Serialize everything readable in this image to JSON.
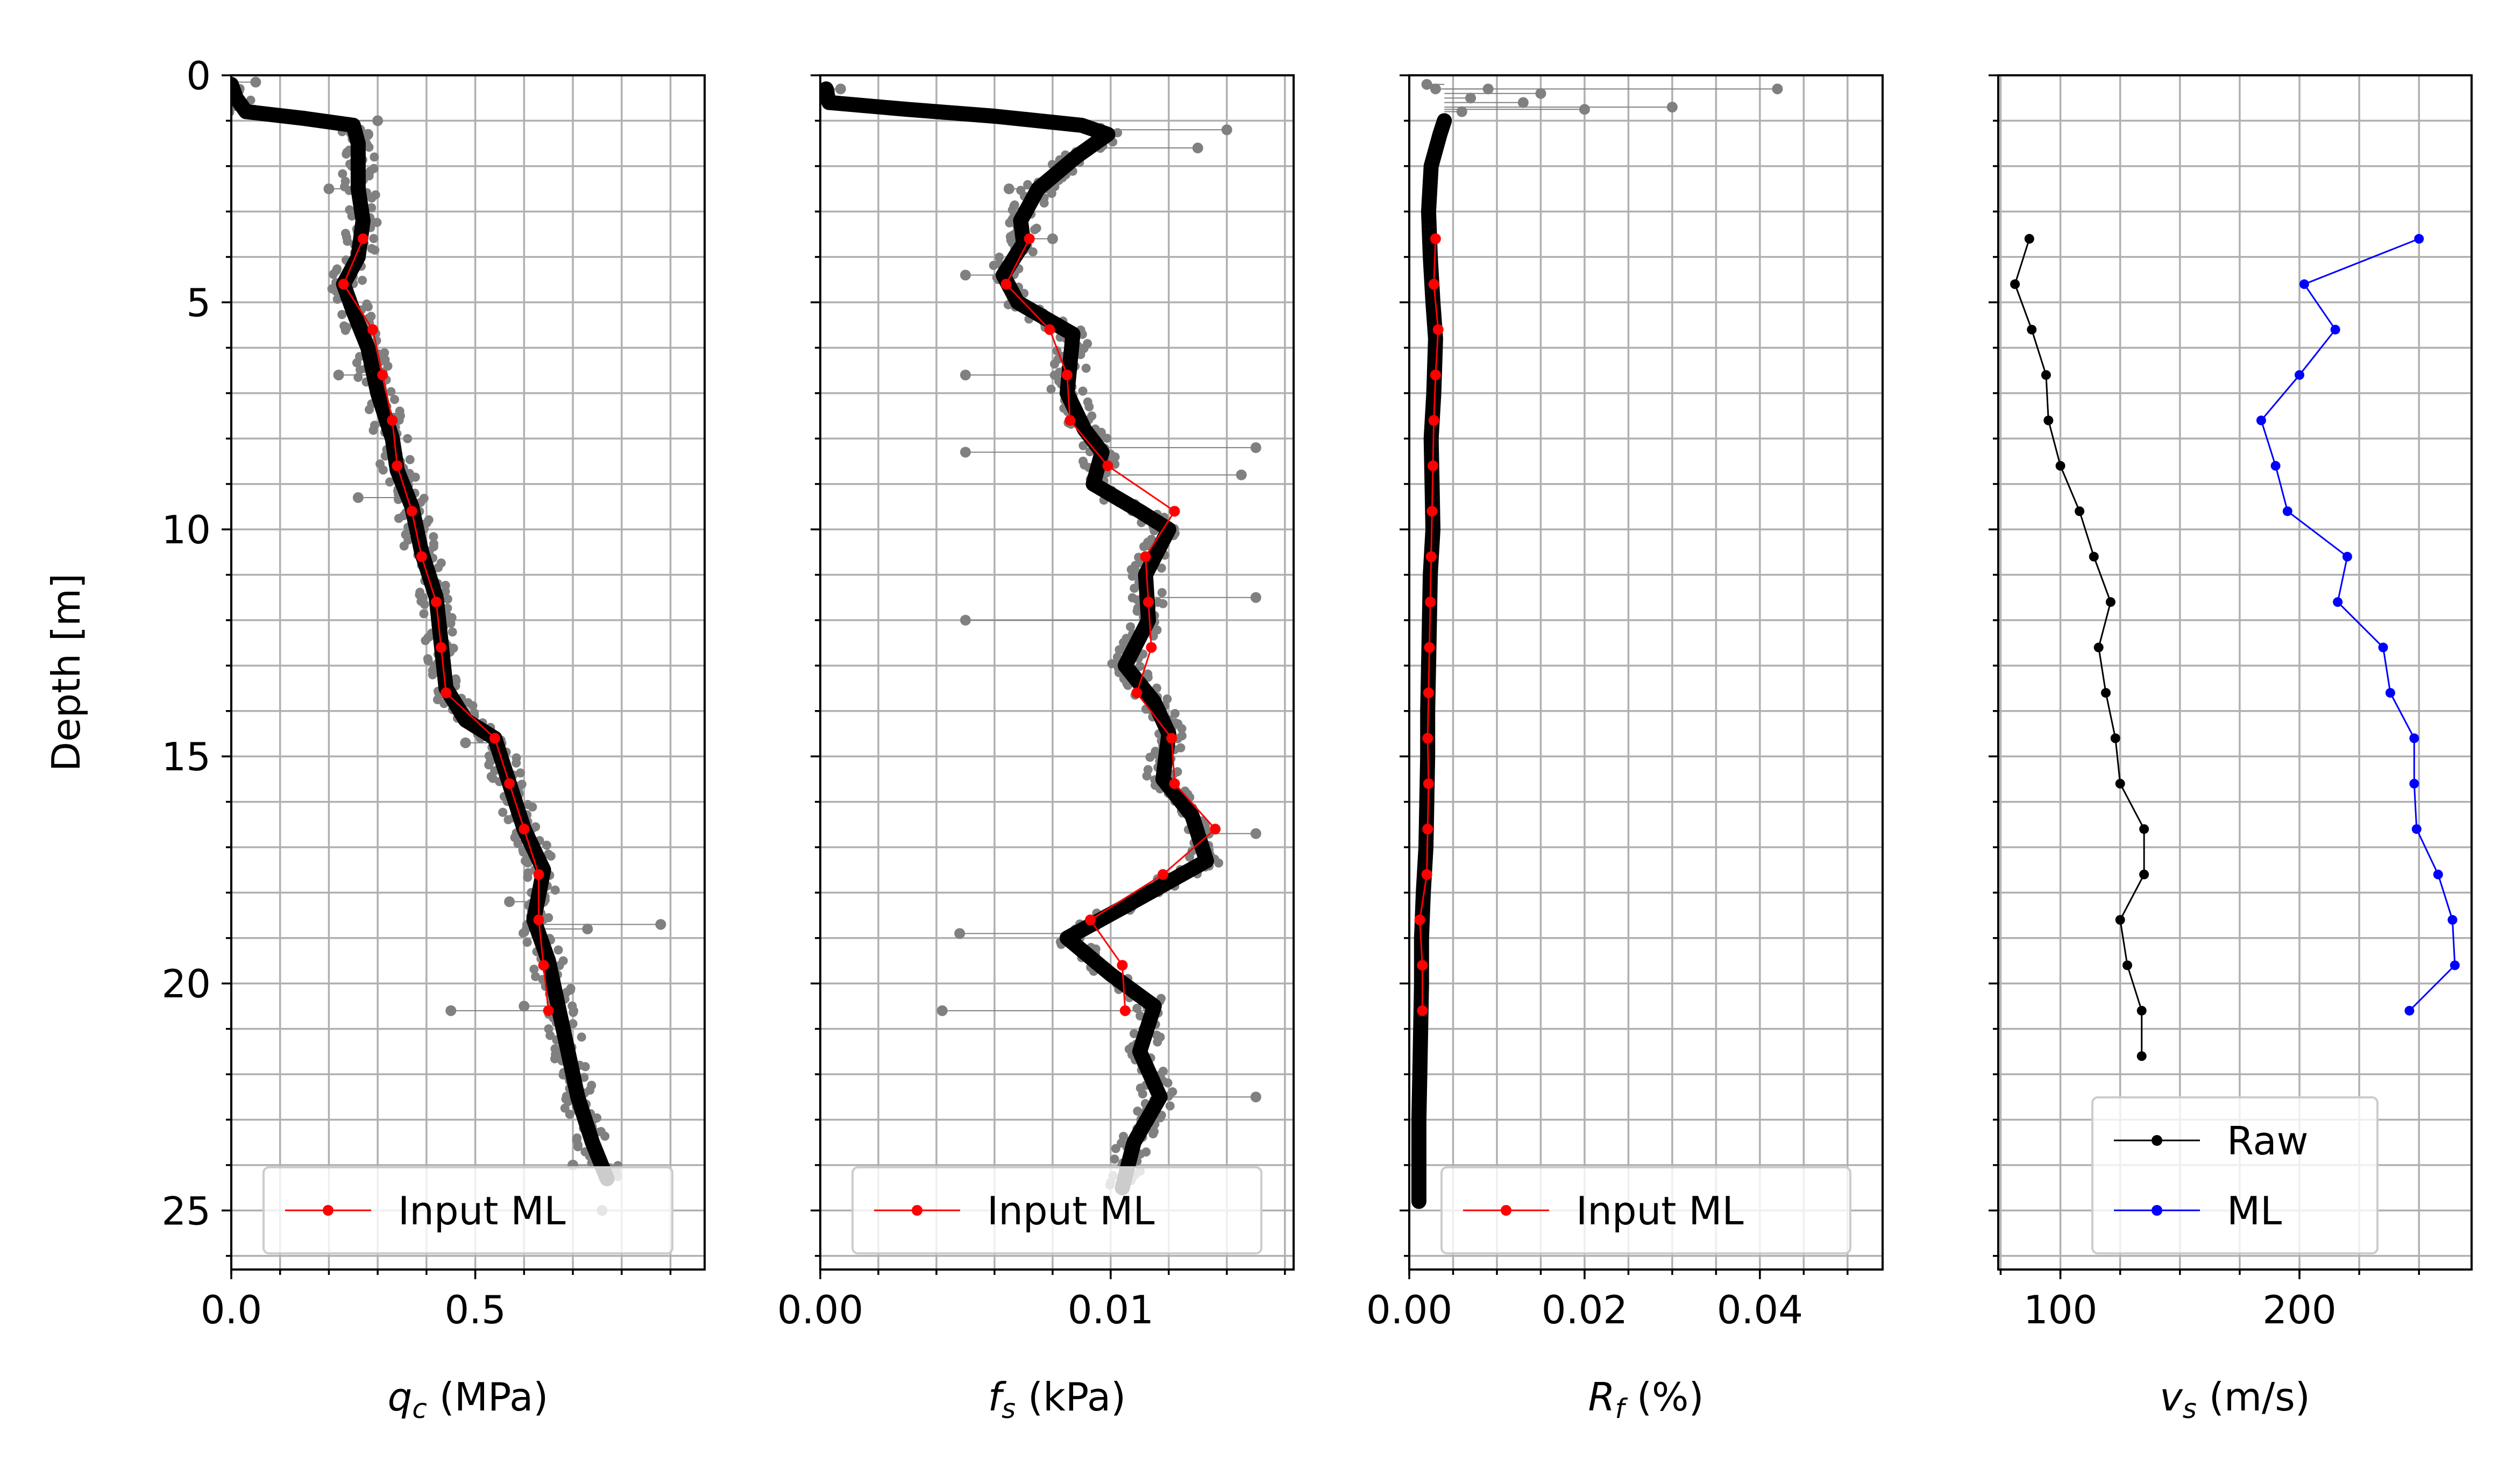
{
  "figure": {
    "ylabel": "Depth [m]",
    "colors": {
      "grid": "#b0b0b0",
      "raw_points": "#808080",
      "smoothed_line": "#000000",
      "input_ml": "#ff0000",
      "vs_raw": "#000000",
      "vs_ml": "#0000ff",
      "axes": "#000000",
      "legend_border": "#cccccc"
    }
  },
  "chart_data": [
    {
      "type": "scatter",
      "panel": "qc",
      "xlabel_main": "q",
      "xlabel_sub": "c",
      "xlabel_unit": " (MPa)",
      "xlim": [
        0,
        0.97
      ],
      "ylim": [
        26.3,
        0
      ],
      "xticks": [
        0,
        0.5
      ],
      "xtick_labels": [
        "0.0",
        "0.5"
      ],
      "xminor_step": 0.1,
      "yticks": [
        0,
        5,
        10,
        15,
        20,
        25
      ],
      "ytick_labels": [
        "0",
        "5",
        "10",
        "15",
        "20",
        "25"
      ],
      "legend": {
        "placement": "lower-center",
        "entries": [
          "Input ML"
        ]
      },
      "smoothed_profile": [
        [
          0.0,
          0.2
        ],
        [
          0.01,
          0.5
        ],
        [
          0.03,
          0.8
        ],
        [
          0.15,
          0.95
        ],
        [
          0.25,
          1.1
        ],
        [
          0.26,
          1.5
        ],
        [
          0.26,
          2.5
        ],
        [
          0.27,
          3.2
        ],
        [
          0.26,
          4.0
        ],
        [
          0.23,
          4.6
        ],
        [
          0.25,
          5.2
        ],
        [
          0.28,
          6.0
        ],
        [
          0.3,
          7.0
        ],
        [
          0.33,
          8.0
        ],
        [
          0.34,
          8.7
        ],
        [
          0.37,
          9.5
        ],
        [
          0.39,
          10.5
        ],
        [
          0.42,
          11.5
        ],
        [
          0.43,
          12.5
        ],
        [
          0.44,
          13.5
        ],
        [
          0.48,
          14.2
        ],
        [
          0.54,
          14.6
        ],
        [
          0.57,
          15.6
        ],
        [
          0.6,
          16.6
        ],
        [
          0.64,
          17.5
        ],
        [
          0.62,
          18.6
        ],
        [
          0.65,
          19.5
        ],
        [
          0.67,
          20.5
        ],
        [
          0.69,
          21.5
        ],
        [
          0.71,
          22.5
        ],
        [
          0.74,
          23.5
        ],
        [
          0.77,
          24.3
        ]
      ],
      "raw_outliers": [
        [
          0.05,
          0.15
        ],
        [
          0.15,
          0.9
        ],
        [
          0.3,
          1.0
        ],
        [
          0.2,
          2.5
        ],
        [
          0.28,
          1.3
        ],
        [
          0.22,
          6.6
        ],
        [
          0.32,
          7.7
        ],
        [
          0.26,
          9.3
        ],
        [
          0.48,
          14.7
        ],
        [
          0.57,
          18.2
        ],
        [
          0.88,
          18.7
        ],
        [
          0.73,
          18.8
        ],
        [
          0.45,
          20.6
        ],
        [
          0.6,
          20.5
        ],
        [
          0.7,
          24.0
        ],
        [
          0.76,
          25.0
        ]
      ],
      "series": [
        {
          "name": "Input ML",
          "x": [
            0.27,
            0.23,
            0.29,
            0.31,
            0.33,
            0.34,
            0.37,
            0.39,
            0.42,
            0.43,
            0.44,
            0.54,
            0.57,
            0.6,
            0.63,
            0.63,
            0.64,
            0.65
          ],
          "y": [
            3.6,
            4.6,
            5.6,
            6.6,
            7.6,
            8.6,
            9.6,
            10.6,
            11.6,
            12.6,
            13.6,
            14.6,
            15.6,
            16.6,
            17.6,
            18.6,
            19.6,
            20.6
          ]
        }
      ]
    },
    {
      "type": "scatter",
      "panel": "fs",
      "xlabel_main": "f",
      "xlabel_sub": "s",
      "xlabel_unit": " (kPa)",
      "xlim": [
        0,
        0.0163
      ],
      "ylim": [
        26.3,
        0
      ],
      "xticks": [
        0,
        0.01
      ],
      "xtick_labels": [
        "0.00",
        "0.01"
      ],
      "xminor_step": 0.002,
      "yticks": [
        0,
        5,
        10,
        15,
        20,
        25
      ],
      "ytick_labels": [
        "",
        "",
        "",
        "",
        "",
        ""
      ],
      "legend": {
        "placement": "lower-center",
        "entries": [
          "Input ML"
        ]
      },
      "smoothed_profile": [
        [
          0.0002,
          0.3
        ],
        [
          0.0003,
          0.6
        ],
        [
          0.003,
          0.75
        ],
        [
          0.006,
          0.9
        ],
        [
          0.009,
          1.1
        ],
        [
          0.0099,
          1.3
        ],
        [
          0.0088,
          1.8
        ],
        [
          0.0075,
          2.5
        ],
        [
          0.0069,
          3.2
        ],
        [
          0.007,
          3.7
        ],
        [
          0.0063,
          4.4
        ],
        [
          0.0068,
          5.0
        ],
        [
          0.0087,
          5.7
        ],
        [
          0.0085,
          7.0
        ],
        [
          0.0091,
          7.8
        ],
        [
          0.0097,
          8.3
        ],
        [
          0.0094,
          9.0
        ],
        [
          0.011,
          9.6
        ],
        [
          0.012,
          10.0
        ],
        [
          0.0112,
          11.0
        ],
        [
          0.0113,
          12.0
        ],
        [
          0.0105,
          13.0
        ],
        [
          0.0115,
          13.8
        ],
        [
          0.012,
          14.5
        ],
        [
          0.0118,
          15.5
        ],
        [
          0.0128,
          16.3
        ],
        [
          0.0133,
          17.3
        ],
        [
          0.0105,
          18.3
        ],
        [
          0.0085,
          19.0
        ],
        [
          0.01,
          19.8
        ],
        [
          0.0115,
          20.5
        ],
        [
          0.011,
          21.5
        ],
        [
          0.0117,
          22.5
        ],
        [
          0.0108,
          23.5
        ],
        [
          0.0104,
          24.5
        ]
      ],
      "raw_outliers": [
        [
          0.0007,
          0.3
        ],
        [
          0.014,
          1.2
        ],
        [
          0.013,
          1.6
        ],
        [
          0.0065,
          2.5
        ],
        [
          0.008,
          3.6
        ],
        [
          0.005,
          4.4
        ],
        [
          0.005,
          6.6
        ],
        [
          0.005,
          8.3
        ],
        [
          0.015,
          8.2
        ],
        [
          0.0145,
          8.8
        ],
        [
          0.015,
          11.5
        ],
        [
          0.005,
          12.0
        ],
        [
          0.015,
          16.7
        ],
        [
          0.0048,
          18.9
        ],
        [
          0.0042,
          20.6
        ],
        [
          0.015,
          22.5
        ]
      ],
      "series": [
        {
          "name": "Input ML",
          "x": [
            0.0072,
            0.0064,
            0.0079,
            0.0085,
            0.0086,
            0.0099,
            0.0122,
            0.0112,
            0.0113,
            0.0114,
            0.0109,
            0.0121,
            0.0122,
            0.0136,
            0.0118,
            0.0093,
            0.0104,
            0.0105
          ],
          "y": [
            3.6,
            4.6,
            5.6,
            6.6,
            7.6,
            8.6,
            9.6,
            10.6,
            11.6,
            12.6,
            13.6,
            14.6,
            15.6,
            16.6,
            17.6,
            18.6,
            19.6,
            20.6
          ]
        }
      ]
    },
    {
      "type": "scatter",
      "panel": "Rf",
      "xlabel_main": "R",
      "xlabel_sub": "f",
      "xlabel_unit": " (%)",
      "xlim": [
        0,
        0.054
      ],
      "ylim": [
        26.3,
        0
      ],
      "xticks": [
        0,
        0.02,
        0.04
      ],
      "xtick_labels": [
        "0.00",
        "0.02",
        "0.04"
      ],
      "xminor_step": 0.005,
      "yticks": [
        0,
        5,
        10,
        15,
        20,
        25
      ],
      "ytick_labels": [
        "",
        "",
        "",
        "",
        "",
        ""
      ],
      "legend": {
        "placement": "lower-center",
        "entries": [
          "Input ML"
        ]
      },
      "smoothed_profile": [
        [
          0.004,
          1.0
        ],
        [
          0.0035,
          1.3
        ],
        [
          0.0025,
          2.0
        ],
        [
          0.0022,
          3.0
        ],
        [
          0.0024,
          4.0
        ],
        [
          0.0027,
          5.0
        ],
        [
          0.003,
          5.8
        ],
        [
          0.0028,
          7.0
        ],
        [
          0.0025,
          8.0
        ],
        [
          0.0026,
          9.0
        ],
        [
          0.0027,
          10.0
        ],
        [
          0.0024,
          11.0
        ],
        [
          0.0023,
          12.0
        ],
        [
          0.0022,
          13.0
        ],
        [
          0.0021,
          14.0
        ],
        [
          0.0021,
          15.0
        ],
        [
          0.002,
          16.0
        ],
        [
          0.0019,
          17.0
        ],
        [
          0.0016,
          18.0
        ],
        [
          0.0014,
          19.0
        ],
        [
          0.0014,
          20.0
        ],
        [
          0.0013,
          21.0
        ],
        [
          0.0012,
          22.0
        ],
        [
          0.0011,
          23.0
        ],
        [
          0.0011,
          24.0
        ],
        [
          0.0011,
          24.8
        ]
      ],
      "raw_outliers": [
        [
          0.042,
          0.3
        ],
        [
          0.03,
          0.7
        ],
        [
          0.02,
          0.75
        ],
        [
          0.015,
          0.4
        ],
        [
          0.013,
          0.6
        ],
        [
          0.009,
          0.3
        ],
        [
          0.007,
          0.5
        ],
        [
          0.006,
          0.8
        ],
        [
          0.003,
          0.3
        ],
        [
          0.002,
          0.2
        ]
      ],
      "series": [
        {
          "name": "Input ML",
          "x": [
            0.003,
            0.0028,
            0.0033,
            0.003,
            0.0028,
            0.0027,
            0.0026,
            0.0025,
            0.0024,
            0.0023,
            0.0022,
            0.0021,
            0.0022,
            0.0021,
            0.002,
            0.0012,
            0.0015,
            0.0015
          ],
          "y": [
            3.6,
            4.6,
            5.6,
            6.6,
            7.6,
            8.6,
            9.6,
            10.6,
            11.6,
            12.6,
            13.6,
            14.6,
            15.6,
            16.6,
            17.6,
            18.6,
            19.6,
            20.6
          ]
        }
      ]
    },
    {
      "type": "line",
      "panel": "vs",
      "xlabel_main": "v",
      "xlabel_sub": "s",
      "xlabel_unit": " (m/s)",
      "xlim": [
        74,
        272
      ],
      "ylim": [
        26.3,
        0
      ],
      "xticks": [
        100,
        200
      ],
      "xtick_labels": [
        "100",
        "200"
      ],
      "xminor_step": 25,
      "yticks": [
        0,
        5,
        10,
        15,
        20,
        25
      ],
      "ytick_labels": [
        "",
        "",
        "",
        "",
        "",
        ""
      ],
      "legend": {
        "placement": "lower-center",
        "entries": [
          "Raw",
          "ML"
        ]
      },
      "series": [
        {
          "name": "Raw",
          "x": [
            87,
            81,
            88,
            94,
            95,
            100,
            108,
            114,
            121,
            116,
            119,
            123,
            125,
            135,
            135,
            125,
            128,
            134,
            134
          ],
          "y": [
            3.6,
            4.6,
            5.6,
            6.6,
            7.6,
            8.6,
            9.6,
            10.6,
            11.6,
            12.6,
            13.6,
            14.6,
            15.6,
            16.6,
            17.6,
            18.6,
            19.6,
            20.6,
            21.6
          ]
        },
        {
          "name": "ML",
          "x": [
            250,
            202,
            215,
            200,
            184,
            190,
            195,
            220,
            216,
            235,
            238,
            248,
            248,
            249,
            258,
            264,
            265,
            246
          ],
          "y": [
            3.6,
            4.6,
            5.6,
            6.6,
            7.6,
            8.6,
            9.6,
            10.6,
            11.6,
            12.6,
            13.6,
            14.6,
            15.6,
            16.6,
            17.6,
            18.6,
            19.6,
            20.6
          ]
        }
      ]
    }
  ]
}
